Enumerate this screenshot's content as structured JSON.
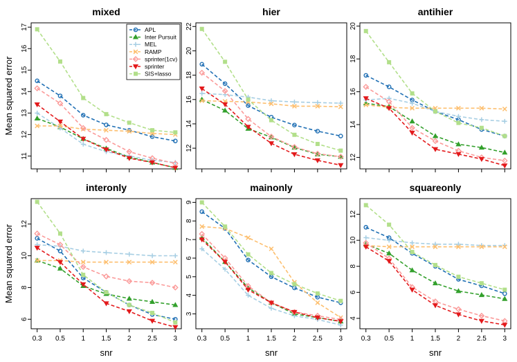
{
  "chart_data": {
    "type": "line",
    "x_ticks": [
      "0.3",
      "0.5",
      "1",
      "1.5",
      "2",
      "2.5",
      "3"
    ],
    "xlabel": "snr",
    "ylabel": "Mean squared error",
    "series_styles": [
      {
        "name": "APL",
        "color": "#1f6fb4",
        "marker": "circle"
      },
      {
        "name": "Inter Pursuit",
        "color": "#33a02c",
        "marker": "triangle-up"
      },
      {
        "name": "MEL",
        "color": "#a6cee3",
        "marker": "plus"
      },
      {
        "name": "RAMP",
        "color": "#fdbf6f",
        "marker": "cross"
      },
      {
        "name": "sprinter(1cv)",
        "color": "#fb9a99",
        "marker": "diamond"
      },
      {
        "name": "sprinter",
        "color": "#e31a1c",
        "marker": "triangle-down"
      },
      {
        "name": "SIS+lasso",
        "color": "#b2df8a",
        "marker": "square"
      }
    ],
    "legend_position": "top-right",
    "legend_panel": "mixed",
    "panels": [
      {
        "title": "mixed",
        "ylim": [
          10.4,
          17.2
        ],
        "y_ticks": [
          11,
          12,
          13,
          14,
          15,
          16,
          17
        ],
        "series": [
          {
            "name": "APL",
            "values": [
              14.5,
              13.8,
              12.9,
              12.45,
              12.2,
              11.9,
              11.7
            ]
          },
          {
            "name": "Inter Pursuit",
            "values": [
              12.75,
              12.35,
              11.8,
              11.35,
              10.95,
              10.7,
              10.45
            ]
          },
          {
            "name": "MEL",
            "values": [
              13.0,
              12.3,
              11.55,
              11.2,
              11.0,
              10.8,
              10.7
            ]
          },
          {
            "name": "RAMP",
            "values": [
              12.4,
              12.4,
              12.25,
              12.2,
              12.15,
              12.05,
              12.0
            ]
          },
          {
            "name": "sprinter(1cv)",
            "values": [
              14.15,
              13.45,
              12.3,
              11.75,
              11.2,
              10.9,
              10.65
            ]
          },
          {
            "name": "sprinter",
            "values": [
              13.4,
              12.6,
              11.8,
              11.3,
              10.9,
              10.7,
              10.45
            ]
          },
          {
            "name": "SIS+lasso",
            "values": [
              16.9,
              15.4,
              13.7,
              12.95,
              12.55,
              12.2,
              12.1
            ]
          }
        ]
      },
      {
        "title": "hier",
        "ylim": [
          10.3,
          22.3
        ],
        "y_ticks": [
          12,
          14,
          16,
          18,
          20,
          22
        ],
        "series": [
          {
            "name": "APL",
            "values": [
              18.9,
              17.3,
              15.5,
              14.55,
              13.9,
              13.4,
              13.0
            ]
          },
          {
            "name": "Inter Pursuit",
            "values": [
              16.0,
              15.1,
              13.6,
              12.9,
              12.05,
              11.5,
              11.3
            ]
          },
          {
            "name": "MEL",
            "values": [
              16.5,
              16.4,
              16.2,
              15.9,
              15.8,
              15.75,
              15.7
            ]
          },
          {
            "name": "RAMP",
            "values": [
              15.9,
              15.85,
              15.8,
              15.65,
              15.45,
              15.45,
              15.4
            ]
          },
          {
            "name": "sprinter(1cv)",
            "values": [
              18.2,
              16.7,
              14.4,
              12.95,
              12.1,
              11.55,
              11.3
            ]
          },
          {
            "name": "sprinter",
            "values": [
              16.9,
              15.6,
              13.75,
              12.4,
              11.5,
              11.0,
              10.6
            ]
          },
          {
            "name": "SIS+lasso",
            "values": [
              21.8,
              19.1,
              16.0,
              14.3,
              13.1,
              12.35,
              11.8
            ]
          }
        ]
      },
      {
        "title": "antihier",
        "ylim": [
          11.3,
          20.2
        ],
        "y_ticks": [
          12,
          14,
          16,
          18,
          20
        ],
        "series": [
          {
            "name": "APL",
            "values": [
              17.0,
              16.3,
              15.5,
              14.8,
              14.3,
              13.7,
              13.3
            ]
          },
          {
            "name": "Inter Pursuit",
            "values": [
              15.3,
              15.1,
              14.2,
              13.3,
              12.8,
              12.6,
              12.3
            ]
          },
          {
            "name": "MEL",
            "values": [
              15.5,
              15.6,
              15.3,
              14.8,
              14.5,
              14.3,
              14.2
            ]
          },
          {
            "name": "RAMP",
            "values": [
              15.2,
              15.05,
              15.0,
              15.0,
              15.0,
              15.0,
              14.95
            ]
          },
          {
            "name": "sprinter(1cv)",
            "values": [
              16.3,
              15.4,
              13.8,
              13.0,
              12.4,
              12.0,
              11.8
            ]
          },
          {
            "name": "sprinter",
            "values": [
              15.6,
              15.0,
              13.5,
              12.5,
              12.2,
              11.9,
              11.5
            ]
          },
          {
            "name": "SIS+lasso",
            "values": [
              19.7,
              17.8,
              15.9,
              14.8,
              14.1,
              13.8,
              13.3
            ]
          }
        ]
      },
      {
        "title": "interonly",
        "ylim": [
          5.4,
          13.6
        ],
        "y_ticks": [
          6,
          8,
          10,
          12
        ],
        "series": [
          {
            "name": "APL",
            "values": [
              11.1,
              10.3,
              8.6,
              7.7,
              6.9,
              6.3,
              6.0
            ]
          },
          {
            "name": "Inter Pursuit",
            "values": [
              9.7,
              9.2,
              8.1,
              7.6,
              7.3,
              7.1,
              6.9
            ]
          },
          {
            "name": "MEL",
            "values": [
              10.7,
              10.6,
              10.3,
              10.2,
              10.1,
              10.0,
              10.0
            ]
          },
          {
            "name": "RAMP",
            "values": [
              9.7,
              9.7,
              9.6,
              9.6,
              9.6,
              9.6,
              9.6
            ]
          },
          {
            "name": "sprinter(1cv)",
            "values": [
              11.4,
              10.7,
              9.3,
              8.7,
              8.4,
              8.3,
              8.0
            ]
          },
          {
            "name": "sprinter",
            "values": [
              10.5,
              9.6,
              8.2,
              7.0,
              6.5,
              5.9,
              5.5
            ]
          },
          {
            "name": "SIS+lasso",
            "values": [
              13.4,
              11.4,
              8.8,
              7.7,
              6.9,
              6.4,
              5.8
            ]
          }
        ]
      },
      {
        "title": "mainonly",
        "ylim": [
          2.2,
          9.2
        ],
        "y_ticks": [
          3,
          4,
          5,
          6,
          7,
          8,
          9
        ],
        "series": [
          {
            "name": "APL",
            "values": [
              8.5,
              7.6,
              5.9,
              5.0,
              4.4,
              3.9,
              3.6
            ]
          },
          {
            "name": "Inter Pursuit",
            "values": [
              7.1,
              5.8,
              4.4,
              3.6,
              3.0,
              2.8,
              2.6
            ]
          },
          {
            "name": "MEL",
            "values": [
              6.5,
              5.4,
              4.0,
              3.3,
              2.9,
              2.7,
              2.4
            ]
          },
          {
            "name": "RAMP",
            "values": [
              7.7,
              7.6,
              7.1,
              6.5,
              4.7,
              3.6,
              2.8
            ]
          },
          {
            "name": "sprinter(1cv)",
            "values": [
              7.3,
              6.0,
              4.5,
              3.6,
              3.1,
              2.9,
              2.7
            ]
          },
          {
            "name": "sprinter",
            "values": [
              7.0,
              5.8,
              4.3,
              3.6,
              3.1,
              2.8,
              2.6
            ]
          },
          {
            "name": "SIS+lasso",
            "values": [
              9.0,
              7.7,
              6.2,
              5.2,
              4.6,
              4.1,
              3.7
            ]
          }
        ]
      },
      {
        "title": "squareonly",
        "ylim": [
          3.2,
          13.2
        ],
        "y_ticks": [
          4,
          6,
          8,
          10,
          12
        ],
        "series": [
          {
            "name": "APL",
            "values": [
              11.0,
              10.2,
              9.0,
              8.0,
              7.0,
              6.5,
              5.9
            ]
          },
          {
            "name": "Inter Pursuit",
            "values": [
              9.7,
              9.0,
              7.7,
              6.7,
              6.1,
              5.8,
              5.5
            ]
          },
          {
            "name": "MEL",
            "values": [
              10.2,
              10.0,
              9.8,
              9.7,
              9.7,
              9.6,
              9.6
            ]
          },
          {
            "name": "RAMP",
            "values": [
              9.6,
              9.5,
              9.5,
              9.5,
              9.5,
              9.5,
              9.5
            ]
          },
          {
            "name": "sprinter(1cv)",
            "values": [
              9.8,
              8.6,
              6.4,
              5.3,
              4.7,
              4.2,
              3.8
            ]
          },
          {
            "name": "sprinter",
            "values": [
              9.5,
              8.4,
              6.2,
              5.0,
              4.3,
              3.8,
              3.5
            ]
          },
          {
            "name": "SIS+lasso",
            "values": [
              12.7,
              11.2,
              9.1,
              8.1,
              7.2,
              6.7,
              6.2
            ]
          }
        ]
      }
    ]
  }
}
